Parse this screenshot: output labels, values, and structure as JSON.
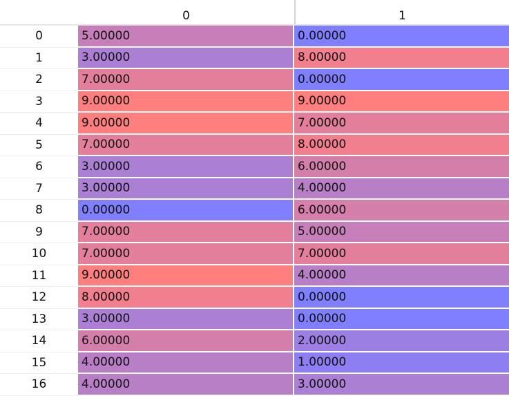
{
  "table": {
    "columns": [
      "0",
      "1"
    ],
    "scale": {
      "low_color": "#7f7fff",
      "high_color": "#ff7f7f",
      "min": 0,
      "max": 9
    },
    "rows": [
      {
        "index": "0",
        "values": [
          "5.00000",
          "0.00000"
        ]
      },
      {
        "index": "1",
        "values": [
          "3.00000",
          "8.00000"
        ]
      },
      {
        "index": "2",
        "values": [
          "7.00000",
          "0.00000"
        ]
      },
      {
        "index": "3",
        "values": [
          "9.00000",
          "9.00000"
        ]
      },
      {
        "index": "4",
        "values": [
          "9.00000",
          "7.00000"
        ]
      },
      {
        "index": "5",
        "values": [
          "7.00000",
          "8.00000"
        ]
      },
      {
        "index": "6",
        "values": [
          "3.00000",
          "6.00000"
        ]
      },
      {
        "index": "7",
        "values": [
          "3.00000",
          "4.00000"
        ]
      },
      {
        "index": "8",
        "values": [
          "0.00000",
          "6.00000"
        ]
      },
      {
        "index": "9",
        "values": [
          "7.00000",
          "5.00000"
        ]
      },
      {
        "index": "10",
        "values": [
          "7.00000",
          "7.00000"
        ]
      },
      {
        "index": "11",
        "values": [
          "9.00000",
          "4.00000"
        ]
      },
      {
        "index": "12",
        "values": [
          "8.00000",
          "0.00000"
        ]
      },
      {
        "index": "13",
        "values": [
          "3.00000",
          "0.00000"
        ]
      },
      {
        "index": "14",
        "values": [
          "6.00000",
          "2.00000"
        ]
      },
      {
        "index": "15",
        "values": [
          "4.00000",
          "1.00000"
        ]
      },
      {
        "index": "16",
        "values": [
          "4.00000",
          "3.00000"
        ]
      }
    ]
  }
}
